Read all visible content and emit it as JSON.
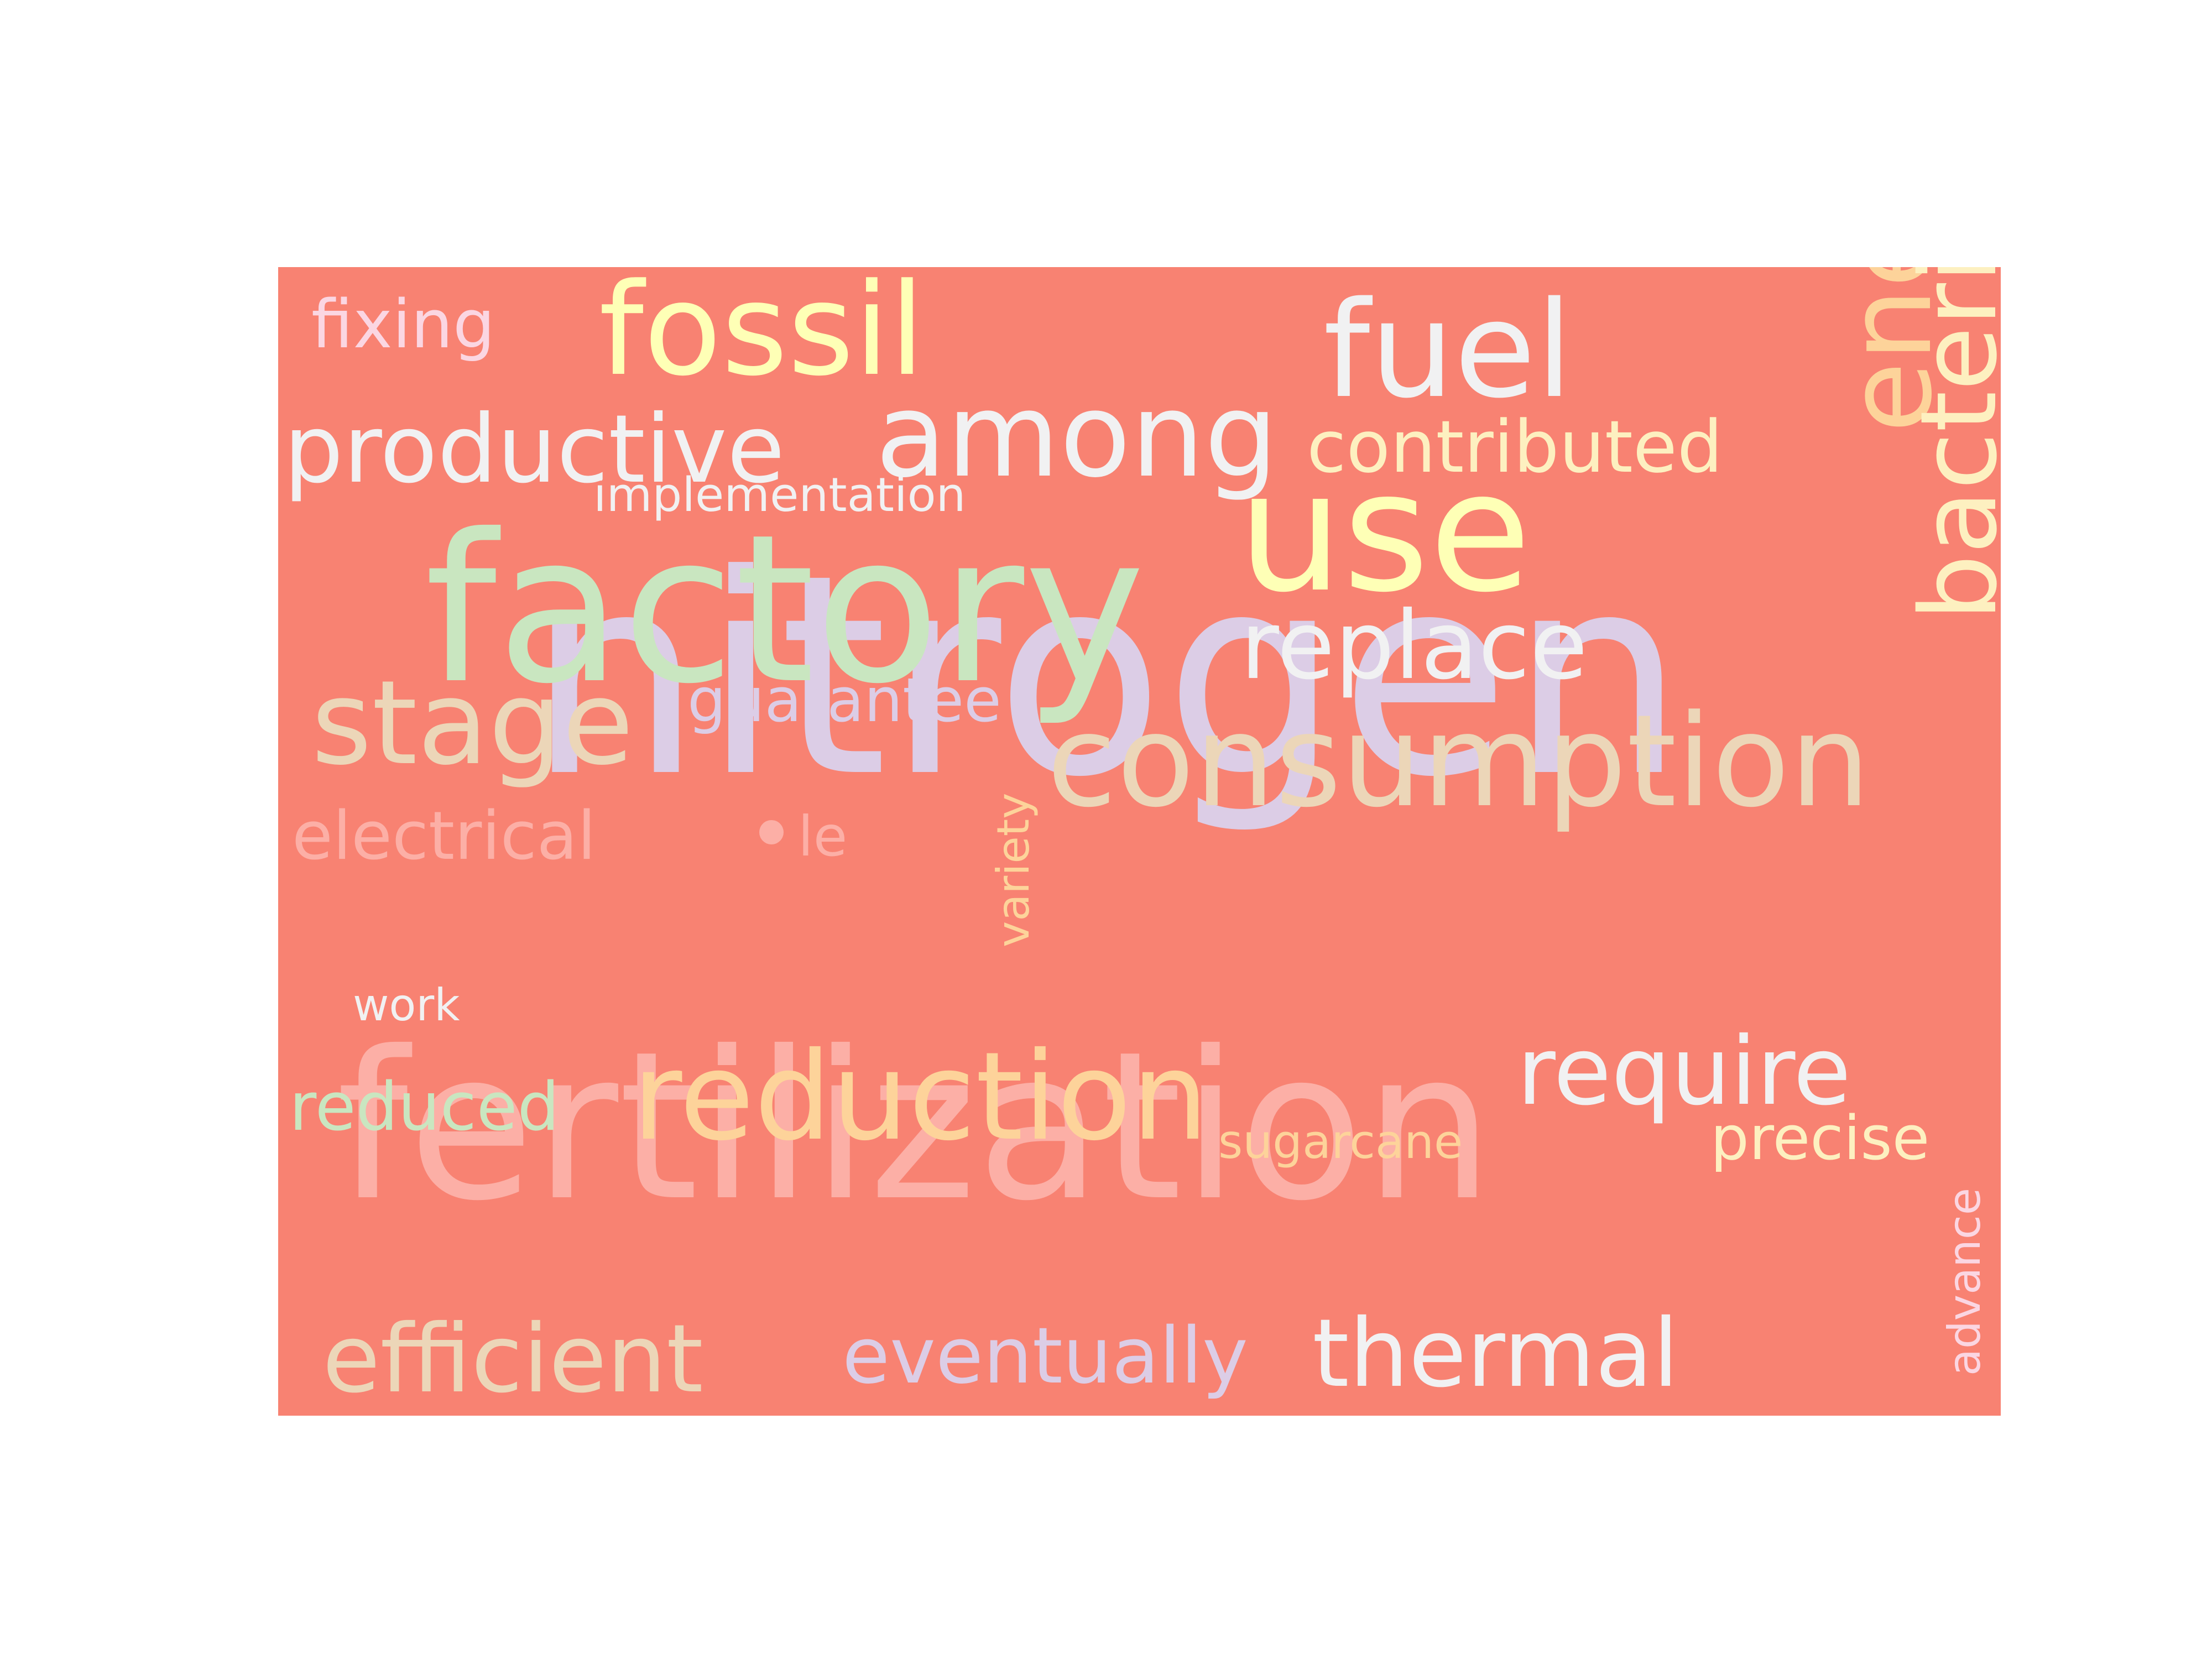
{
  "background_color": "#f88272",
  "words": [
    {
      "key": "nitrogen",
      "text": "nitrogen",
      "color": "#dccde6"
    },
    {
      "key": "fertilization",
      "text": "fertilization",
      "color": "#fcafa6"
    },
    {
      "key": "factory",
      "text": "factory",
      "color": "#c9e6c0"
    },
    {
      "key": "use",
      "text": "use",
      "color": "#feffb6"
    },
    {
      "key": "fossil",
      "text": "fossil",
      "color": "#feffb6"
    },
    {
      "key": "fuel",
      "text": "fuel",
      "color": "#f1f1f2"
    },
    {
      "key": "consumption",
      "text": "consumption",
      "color": "#ecd6b8"
    },
    {
      "key": "reduction",
      "text": "reduction",
      "color": "#fdd39a"
    },
    {
      "key": "among",
      "text": "among",
      "color": "#f1f1f2"
    },
    {
      "key": "energy",
      "text": "energy",
      "color": "#fdd39a"
    },
    {
      "key": "productive",
      "text": "productive",
      "color": "#f1f1f2"
    },
    {
      "key": "stage",
      "text": "stage",
      "color": "#ecd6b8"
    },
    {
      "key": "replace",
      "text": "replace",
      "color": "#f1f1f2"
    },
    {
      "key": "bacteria",
      "text": "bacteria",
      "color": "#fdf0c0"
    },
    {
      "key": "require",
      "text": "require",
      "color": "#f1f1f2"
    },
    {
      "key": "thermal",
      "text": "thermal",
      "color": "#f1f1f2"
    },
    {
      "key": "efficient",
      "text": "efficient",
      "color": "#ecd6b8"
    },
    {
      "key": "eventually",
      "text": "eventually",
      "color": "#dccde6"
    },
    {
      "key": "contributed",
      "text": "contributed",
      "color": "#fdf0c0"
    },
    {
      "key": "guarantee",
      "text": "guarantee",
      "color": "#dccde6"
    },
    {
      "key": "fixing",
      "text": "fixing",
      "color": "#fbd6e2"
    },
    {
      "key": "electrical",
      "text": "electrical",
      "color": "#fcafa6"
    },
    {
      "key": "le",
      "text": "le",
      "color": "#fcafa6"
    },
    {
      "key": "reduced",
      "text": "reduced",
      "color": "#c9e6c0"
    },
    {
      "key": "precise",
      "text": "precise",
      "color": "#fdf0c0"
    },
    {
      "key": "implementation",
      "text": "implementation",
      "color": "#f1f1f2"
    },
    {
      "key": "variety",
      "text": "variety",
      "color": "#fdd39a"
    },
    {
      "key": "sugarcane",
      "text": "sugarcane",
      "color": "#fdd39a"
    },
    {
      "key": "work",
      "text": "work",
      "color": "#f1f1f2"
    },
    {
      "key": "advance",
      "text": "advance",
      "color": "#fbd6e2"
    }
  ]
}
